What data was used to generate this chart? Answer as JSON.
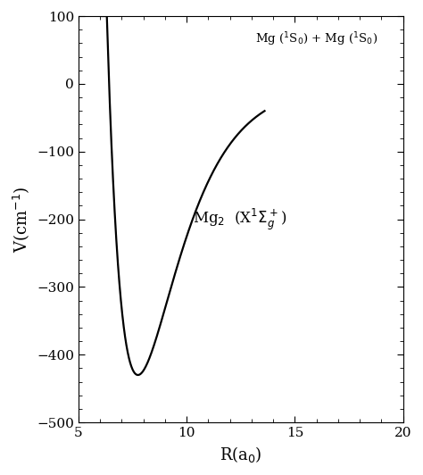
{
  "xlim": [
    5,
    20
  ],
  "ylim": [
    -500,
    100
  ],
  "xticks": [
    5,
    10,
    15,
    20
  ],
  "yticks": [
    -500,
    -400,
    -300,
    -200,
    -100,
    0,
    100
  ],
  "xlabel": "R(a$_0$)",
  "ylabel": "V(cm$^{-1}$)",
  "curve_label": "Mg$_2$  (X$^1\\Sigma^+_g$)",
  "asymptote_label": "Mg ($^1$S$_0$) + Mg ($^1$S$_0$)",
  "De": 430.0,
  "Re": 7.75,
  "alpha": 0.52,
  "R_start": 6.08,
  "R_end": 13.6,
  "background_color": "#ffffff",
  "curve_color": "#000000",
  "linewidth": 1.6
}
